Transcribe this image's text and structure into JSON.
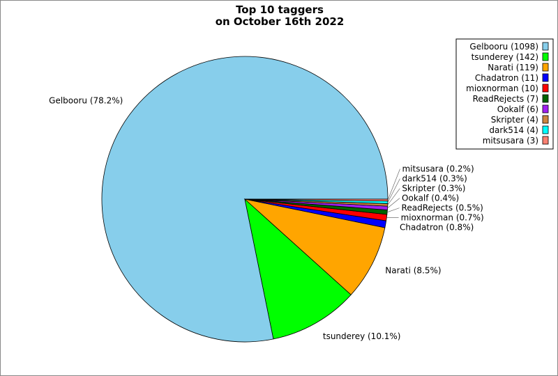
{
  "chart_data": {
    "type": "pie",
    "title": [
      "Top 10 taggers",
      "on October 16th 2022"
    ],
    "legend_position": "top-right",
    "slices": [
      {
        "name": "Gelbooru",
        "value": 1098,
        "percent": "78.2%",
        "color": "#87ceeb"
      },
      {
        "name": "tsunderey",
        "value": 142,
        "percent": "10.1%",
        "color": "#00ff00"
      },
      {
        "name": "Narati",
        "value": 119,
        "percent": "8.5%",
        "color": "#ffa500"
      },
      {
        "name": "Chadatron",
        "value": 11,
        "percent": "0.8%",
        "color": "#0000ff"
      },
      {
        "name": "mioxnorman",
        "value": 10,
        "percent": "0.7%",
        "color": "#ff0000"
      },
      {
        "name": "ReadRejects",
        "value": 7,
        "percent": "0.5%",
        "color": "#006400"
      },
      {
        "name": "Ookalf",
        "value": 6,
        "percent": "0.4%",
        "color": "#a020f0"
      },
      {
        "name": "Skripter",
        "value": 4,
        "percent": "0.3%",
        "color": "#cd853f"
      },
      {
        "name": "dark514",
        "value": 4,
        "percent": "0.3%",
        "color": "#00ffff"
      },
      {
        "name": "mitsusara",
        "value": 3,
        "percent": "0.2%",
        "color": "#fa8072"
      }
    ]
  }
}
